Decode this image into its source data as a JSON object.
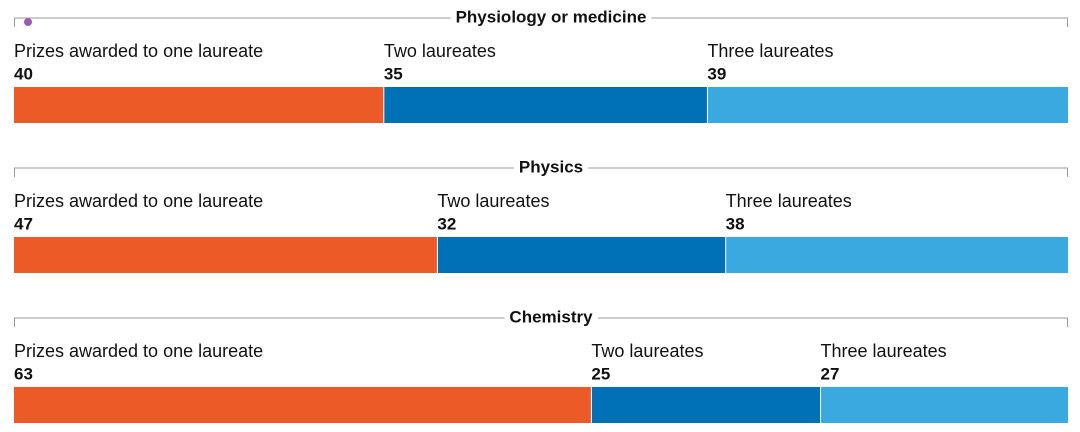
{
  "chart_data": [
    {
      "type": "stacked-bar",
      "title": "Physiology or medicine",
      "series": [
        {
          "name": "Prizes awarded to one laureate",
          "color": "#ec5a28",
          "values": [
            40
          ]
        },
        {
          "name": "Two laureates",
          "color": "#0070b7",
          "values": [
            35
          ]
        },
        {
          "name": "Three laureates",
          "color": "#39a9df",
          "values": [
            39
          ]
        }
      ]
    },
    {
      "type": "stacked-bar",
      "title": "Physics",
      "series": [
        {
          "name": "Prizes awarded to one laureate",
          "color": "#ec5a28",
          "values": [
            47
          ]
        },
        {
          "name": "Two laureates",
          "color": "#0070b7",
          "values": [
            32
          ]
        },
        {
          "name": "Three laureates",
          "color": "#39a9df",
          "values": [
            38
          ]
        }
      ]
    },
    {
      "type": "stacked-bar",
      "title": "Chemistry",
      "series": [
        {
          "name": "Prizes awarded to one laureate",
          "color": "#ec5a28",
          "values": [
            63
          ]
        },
        {
          "name": "Two laureates",
          "color": "#0070b7",
          "values": [
            25
          ]
        },
        {
          "name": "Three laureates",
          "color": "#39a9df",
          "values": [
            27
          ]
        }
      ]
    }
  ]
}
